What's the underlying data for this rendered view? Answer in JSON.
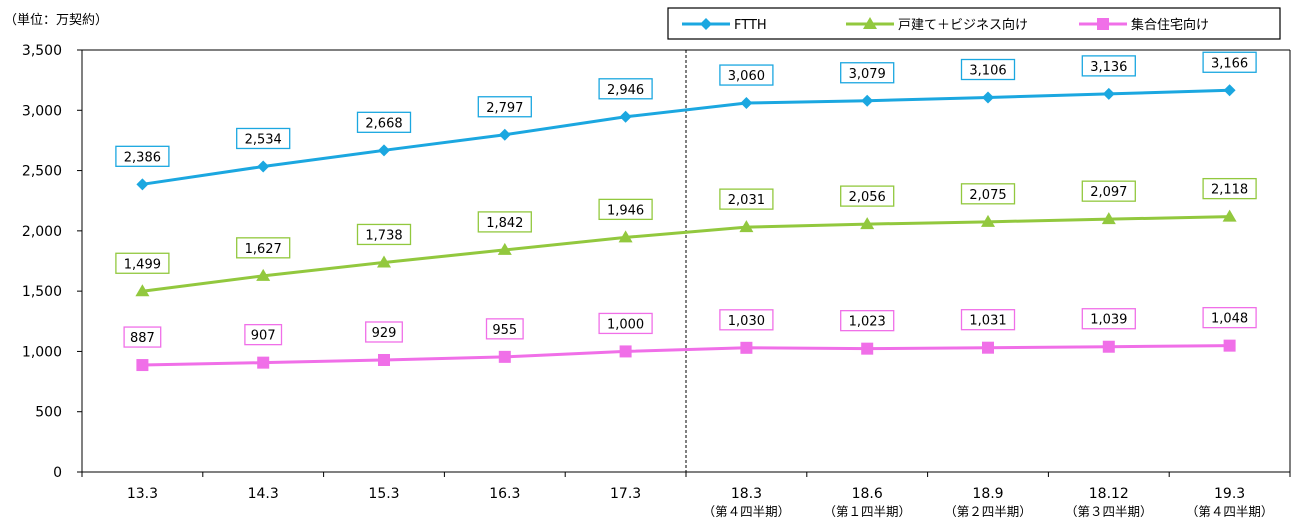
{
  "chart_data": {
    "type": "line",
    "unit_label": "（単位：万契約）",
    "categories": [
      "13.3",
      "14.3",
      "15.3",
      "16.3",
      "17.3",
      "18.3",
      "18.6",
      "18.9",
      "18.12",
      "19.3"
    ],
    "category_sublabels": [
      "",
      "",
      "",
      "",
      "",
      "（第４四半期）",
      "（第１四半期）",
      "（第２四半期）",
      "（第３四半期）",
      "（第４四半期）"
    ],
    "ylim": [
      0,
      3500
    ],
    "yticks": [
      0,
      500,
      1000,
      1500,
      2000,
      2500,
      3000,
      3500
    ],
    "ytick_labels": [
      "0",
      "500",
      "1,000",
      "1,500",
      "2,000",
      "2,500",
      "3,000",
      "3,500"
    ],
    "grid": false,
    "divider_after_index": 4,
    "legend_position": "top-right",
    "series": [
      {
        "name": "FTTH",
        "color": "#1BA7E0",
        "marker": "diamond",
        "values": [
          2386,
          2534,
          2668,
          2797,
          2946,
          3060,
          3079,
          3106,
          3136,
          3166
        ],
        "labels": [
          "2,386",
          "2,534",
          "2,668",
          "2,797",
          "2,946",
          "3,060",
          "3,079",
          "3,106",
          "3,136",
          "3,166"
        ]
      },
      {
        "name": "戸建て＋ビジネス向け",
        "color": "#92C83E",
        "marker": "triangle",
        "values": [
          1499,
          1627,
          1738,
          1842,
          1946,
          2031,
          2056,
          2075,
          2097,
          2118
        ],
        "labels": [
          "1,499",
          "1,627",
          "1,738",
          "1,842",
          "1,946",
          "2,031",
          "2,056",
          "2,075",
          "2,097",
          "2,118"
        ]
      },
      {
        "name": "集合住宅向け",
        "color": "#F06FE8",
        "marker": "square",
        "values": [
          887,
          907,
          929,
          955,
          1000,
          1030,
          1023,
          1031,
          1039,
          1048
        ],
        "labels": [
          "887",
          "907",
          "929",
          "955",
          "1,000",
          "1,030",
          "1,023",
          "1,031",
          "1,039",
          "1,048"
        ]
      }
    ]
  }
}
